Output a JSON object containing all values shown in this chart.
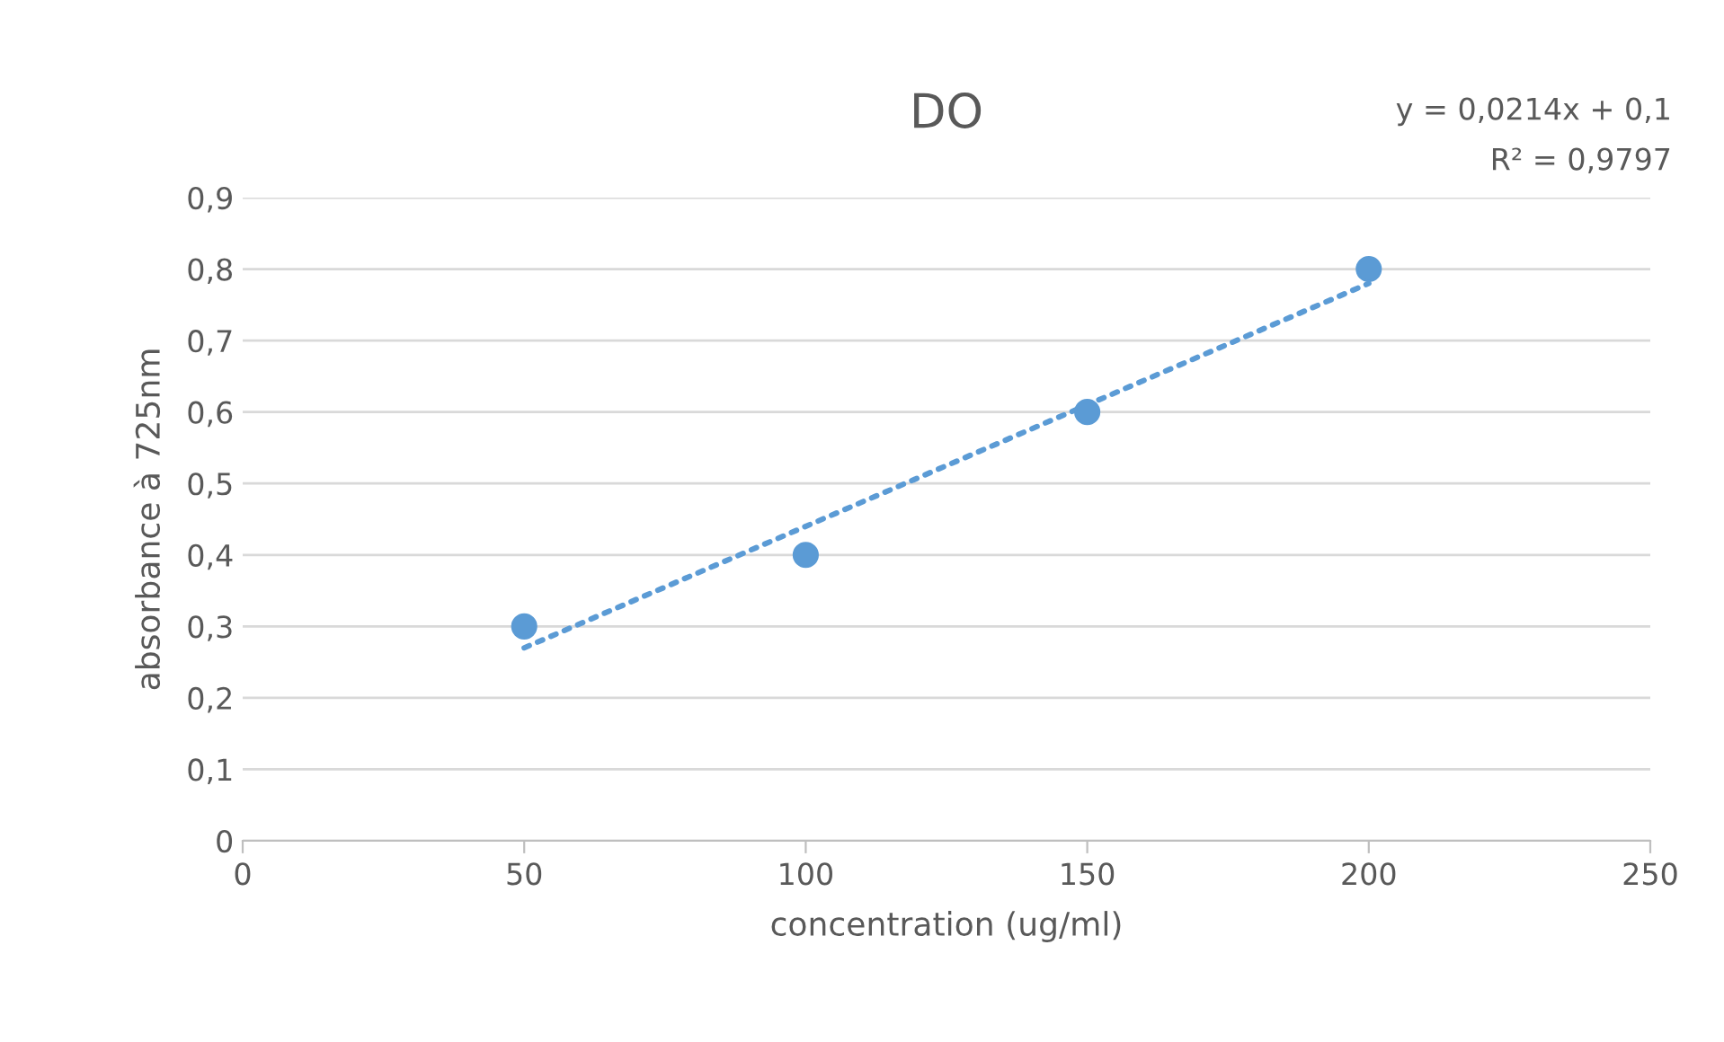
{
  "chart_data": {
    "type": "scatter",
    "title": "DO",
    "xlabel": "concentration (ug/ml)",
    "ylabel": "absorbance à 725nm",
    "series": [
      {
        "color": "#5b9bd5",
        "x": [
          50,
          100,
          150,
          200
        ],
        "values": [
          0.3,
          0.4,
          0.6,
          0.8
        ],
        "marker": "circle"
      },
      {
        "type": "line",
        "color": "#5b9bd5",
        "x": [
          50,
          200
        ],
        "values": [
          0.27,
          0.78
        ],
        "line_style": "dotted",
        "marker": "none"
      }
    ],
    "xlim": [
      0,
      250
    ],
    "xticks": [
      0,
      50,
      100,
      150,
      200,
      250
    ],
    "ylim": [
      0,
      0.9
    ],
    "yticks": [
      {
        "value": 0,
        "label": "0"
      },
      {
        "value": 0.1,
        "label": "0,1"
      },
      {
        "value": 0.2,
        "label": "0,2"
      },
      {
        "value": 0.3,
        "label": "0,3"
      },
      {
        "value": 0.4,
        "label": "0,4"
      },
      {
        "value": 0.5,
        "label": "0,5"
      },
      {
        "value": 0.6,
        "label": "0,6"
      },
      {
        "value": 0.7,
        "label": "0,7"
      },
      {
        "value": 0.8,
        "label": "0,8"
      },
      {
        "value": 0.9,
        "label": "0,9"
      }
    ],
    "grid": "y",
    "legend": false,
    "annotations": [
      "y = 0,0214x + 0,1",
      "R² = 0,9797"
    ]
  }
}
